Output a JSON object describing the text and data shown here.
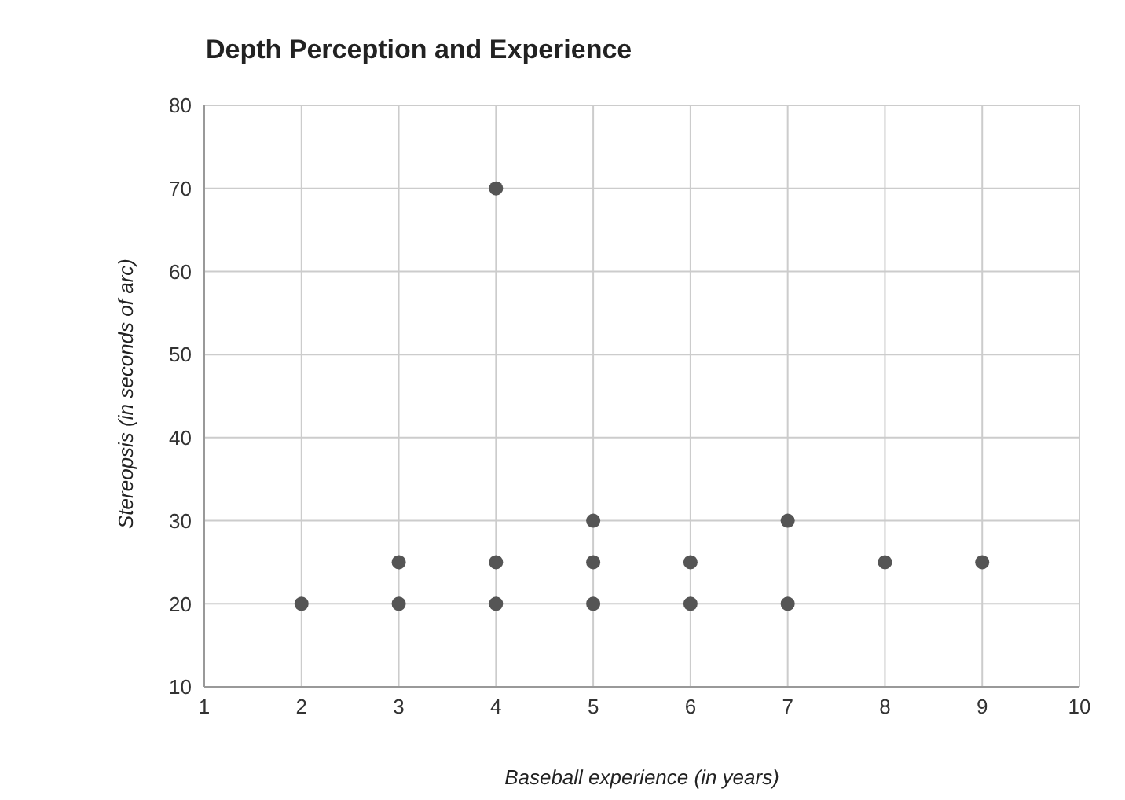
{
  "chart_data": {
    "type": "scatter",
    "title": "Depth Perception and Experience",
    "xlabel": "Baseball experience (in years)",
    "ylabel": "Stereopsis (in seconds of arc)",
    "x": [
      2,
      3,
      3,
      4,
      4,
      4,
      5,
      5,
      5,
      6,
      6,
      7,
      7,
      8,
      9
    ],
    "series": [
      {
        "color": "#555555",
        "values": [
          20,
          25,
          20,
          70,
          25,
          20,
          30,
          25,
          20,
          25,
          20,
          30,
          20,
          25,
          25
        ]
      }
    ],
    "xlim": [
      1,
      10
    ],
    "xticks": [
      1,
      2,
      3,
      4,
      5,
      6,
      7,
      8,
      9,
      10
    ],
    "ylim": [
      10,
      80
    ],
    "yticks": [
      10,
      20,
      30,
      40,
      50,
      60,
      70,
      80
    ],
    "grid": true,
    "marker": "circle",
    "legend": false
  }
}
